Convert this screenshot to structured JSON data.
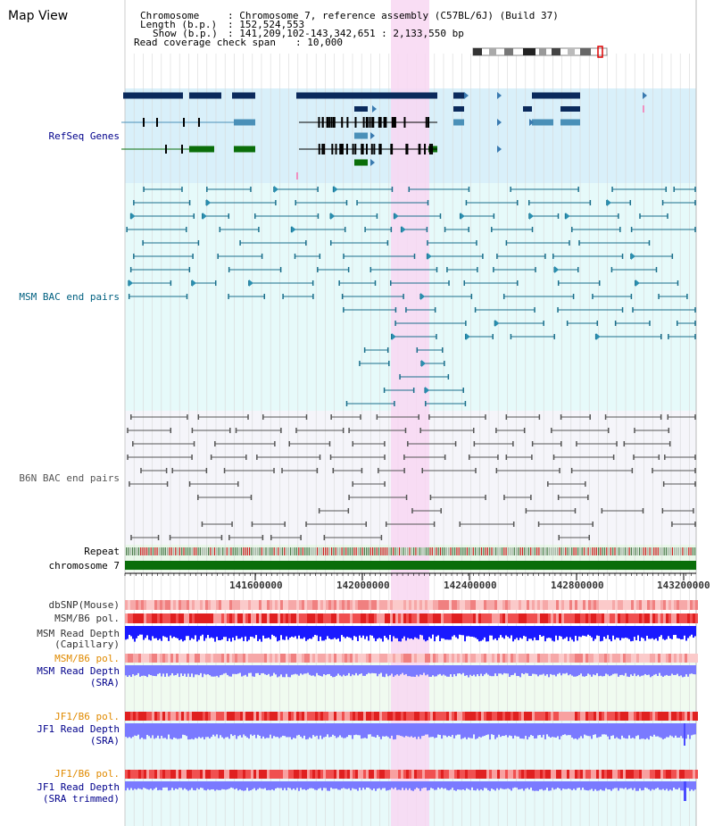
{
  "app": {
    "title": "Map View"
  },
  "header": {
    "chromosome_key": "Chromosome",
    "chromosome_value": ": Chromosome 7, reference assembly (C57BL/6J) (Build 37)",
    "length_key": "Length (b.p.)",
    "length_value": ": 152,524,553",
    "show_key": "Show (b.p.)",
    "show_value": ": 141,209,102-143,342,651 : 2,133,550 bp",
    "coverage_key": "Read coverage check span",
    "coverage_value": ": 10,000"
  },
  "tracks": {
    "refseq": "RefSeq Genes",
    "msm_bac": "MSM BAC end pairs",
    "b6n_bac": "B6N BAC end pairs",
    "repeat": "Repeat",
    "chromosome": "chromosome 7",
    "dbsnp": "dbSNP(Mouse)",
    "msm_b6_pol": "MSM/B6 pol.",
    "msm_depth_cap_1": "MSM Read Depth",
    "msm_depth_cap_2": "(Capillary)",
    "msm_b6_pol2": "MSM/B6 pol.",
    "msm_depth_sra_1": "MSM Read Depth",
    "msm_depth_sra_2": "(SRA)",
    "jf1_pol": "JF1/B6 pol.",
    "jf1_depth_sra_1": "JF1 Read Depth",
    "jf1_depth_sra_2": "(SRA)",
    "jf1_pol2": "JF1/B6 pol.",
    "jf1_depth_trim_1": "JF1 Read Depth",
    "jf1_depth_trim_2": "(SRA trimmed)"
  },
  "axis": {
    "ticks": [
      "141600000",
      "142000000",
      "142400000",
      "142800000",
      "143200000"
    ]
  },
  "colors": {
    "refseq_bg": "#d9f0fa",
    "msm_bg": "#e6fafa",
    "b6n_bg": "#f5f5fa",
    "highlight": "#f8d7f2",
    "navy": "#0b2a5c",
    "green": "#0a6e0a",
    "teal": "#1a6f8c",
    "grey": "#555555",
    "blue_depth": "#1a1aff",
    "label_navy": "#00008b",
    "label_orange": "#e08a00",
    "label_teal": "#006080"
  }
}
